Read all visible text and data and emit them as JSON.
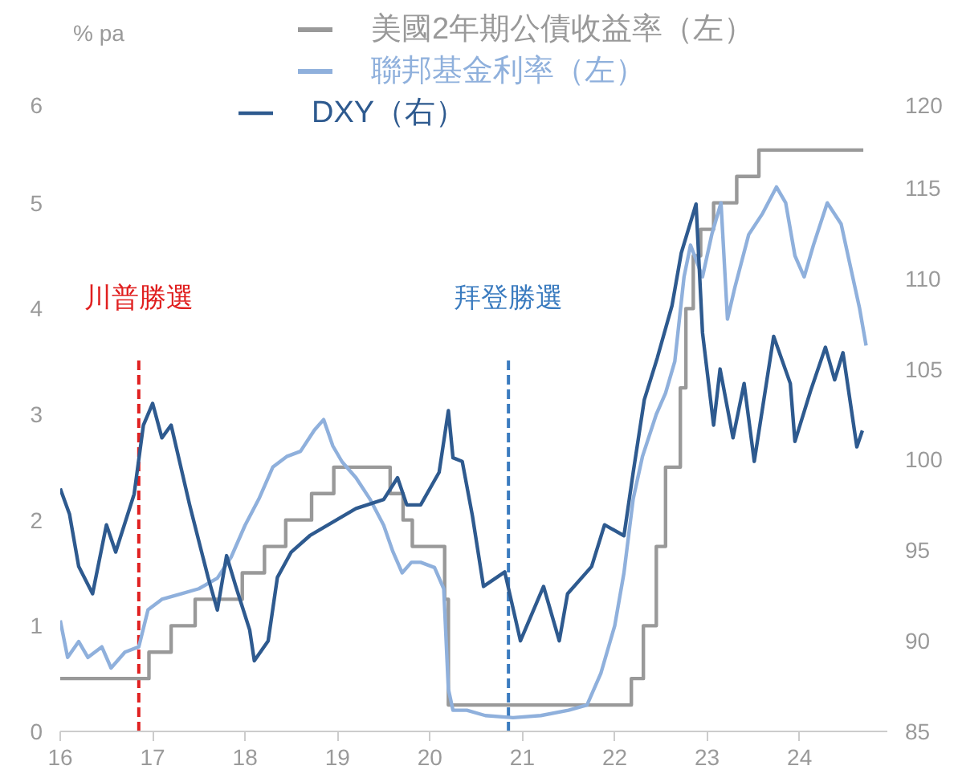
{
  "chart_data": {
    "type": "line",
    "ylabel": "% pa",
    "legend": "top",
    "xlim": [
      16,
      24.95
    ],
    "xticks": [
      16,
      17,
      18,
      19,
      20,
      21,
      22,
      23,
      24
    ],
    "ylim": [
      0,
      6
    ],
    "yticks": [
      0,
      1,
      2,
      3,
      4,
      5,
      6
    ],
    "y2lim": [
      85,
      120
    ],
    "y2ticks": [
      85,
      90,
      95,
      100,
      105,
      110,
      115,
      120
    ],
    "series": [
      {
        "name": "美國2年期公債收益率（左）",
        "type": "step",
        "color": "#999999",
        "x": [
          16.0,
          16.96,
          17.2,
          17.46,
          17.97,
          18.21,
          18.44,
          18.72,
          18.96,
          19.57,
          19.71,
          19.81,
          20.16,
          20.2,
          22.18,
          22.31,
          22.45,
          22.55,
          22.71,
          22.77,
          22.85,
          22.93,
          23.07,
          23.32,
          23.56,
          24.69
        ],
        "values": [
          0.5,
          0.75,
          1.0,
          1.25,
          1.5,
          1.75,
          2.0,
          2.25,
          2.5,
          2.25,
          2.0,
          1.75,
          1.25,
          0.25,
          0.5,
          1.0,
          1.75,
          2.5,
          3.25,
          4.0,
          4.5,
          4.75,
          5.0,
          5.25,
          5.5,
          5.5
        ]
      },
      {
        "name": "聯邦基金利率（左）",
        "color": "#8fb0dc",
        "x": [
          16.0,
          16.08,
          16.2,
          16.3,
          16.45,
          16.55,
          16.7,
          16.85,
          16.95,
          17.1,
          17.3,
          17.5,
          17.7,
          17.85,
          18.0,
          18.15,
          18.3,
          18.45,
          18.6,
          18.75,
          18.85,
          18.95,
          19.05,
          19.2,
          19.35,
          19.5,
          19.6,
          19.7,
          19.8,
          19.9,
          20.05,
          20.15,
          20.2,
          20.25,
          20.4,
          20.6,
          20.9,
          21.2,
          21.5,
          21.7,
          21.85,
          22.0,
          22.1,
          22.2,
          22.3,
          22.45,
          22.55,
          22.65,
          22.75,
          22.82,
          22.95,
          23.05,
          23.15,
          23.22,
          23.3,
          23.45,
          23.6,
          23.75,
          23.85,
          23.95,
          24.05,
          24.15,
          24.3,
          24.45,
          24.55,
          24.65,
          24.72
        ],
        "values": [
          1.05,
          0.7,
          0.85,
          0.7,
          0.8,
          0.6,
          0.75,
          0.8,
          1.15,
          1.25,
          1.3,
          1.35,
          1.45,
          1.65,
          1.95,
          2.2,
          2.5,
          2.6,
          2.65,
          2.85,
          2.95,
          2.7,
          2.55,
          2.4,
          2.2,
          1.95,
          1.7,
          1.5,
          1.6,
          1.6,
          1.55,
          1.35,
          0.4,
          0.2,
          0.2,
          0.15,
          0.13,
          0.15,
          0.2,
          0.25,
          0.55,
          1.0,
          1.5,
          2.2,
          2.6,
          3.0,
          3.2,
          3.5,
          4.3,
          4.6,
          4.3,
          4.7,
          5.0,
          3.9,
          4.2,
          4.7,
          4.9,
          5.15,
          5.0,
          4.5,
          4.3,
          4.6,
          5.0,
          4.8,
          4.4,
          4.0,
          3.65
        ]
      },
      {
        "name": "DXY（右）",
        "color": "#2e5a8f",
        "axis": "y2",
        "x": [
          16.0,
          16.1,
          16.2,
          16.35,
          16.5,
          16.6,
          16.8,
          16.9,
          17.0,
          17.1,
          17.2,
          17.4,
          17.6,
          17.7,
          17.8,
          17.9,
          18.05,
          18.1,
          18.25,
          18.35,
          18.5,
          18.7,
          19.0,
          19.2,
          19.5,
          19.65,
          19.75,
          19.9,
          20.1,
          20.2,
          20.25,
          20.35,
          20.46,
          20.58,
          20.81,
          20.98,
          21.23,
          21.4,
          21.49,
          21.75,
          21.89,
          22.1,
          22.2,
          22.32,
          22.46,
          22.62,
          22.72,
          22.88,
          22.95,
          23.07,
          23.14,
          23.28,
          23.4,
          23.51,
          23.72,
          23.9,
          23.95,
          24.12,
          24.28,
          24.38,
          24.47,
          24.62,
          24.68
        ],
        "values": [
          98.4,
          97.0,
          94.1,
          92.6,
          96.4,
          94.9,
          98.1,
          101.9,
          103.1,
          101.2,
          101.9,
          97.5,
          93.5,
          91.7,
          94.7,
          93.0,
          90.6,
          88.9,
          90.0,
          93.5,
          94.9,
          95.8,
          96.7,
          97.3,
          97.8,
          99.0,
          97.5,
          97.5,
          99.3,
          102.7,
          100.1,
          99.9,
          96.9,
          93.0,
          93.8,
          90.0,
          93.0,
          90.0,
          92.6,
          94.1,
          96.4,
          95.8,
          99.3,
          103.3,
          105.6,
          108.5,
          111.4,
          114.1,
          107.0,
          101.9,
          105.0,
          101.2,
          104.2,
          99.9,
          106.8,
          104.2,
          101.0,
          103.8,
          106.2,
          104.4,
          105.9,
          100.7,
          101.6
        ]
      }
    ],
    "ref_lines": [
      {
        "axis": "x",
        "value": 16.85,
        "label": "川普勝選",
        "color": "#e02020",
        "line_style": "dashed"
      },
      {
        "axis": "x",
        "value": 20.85,
        "label": "拜登勝選",
        "color": "#3a7bbf",
        "line_style": "dashed"
      }
    ]
  }
}
